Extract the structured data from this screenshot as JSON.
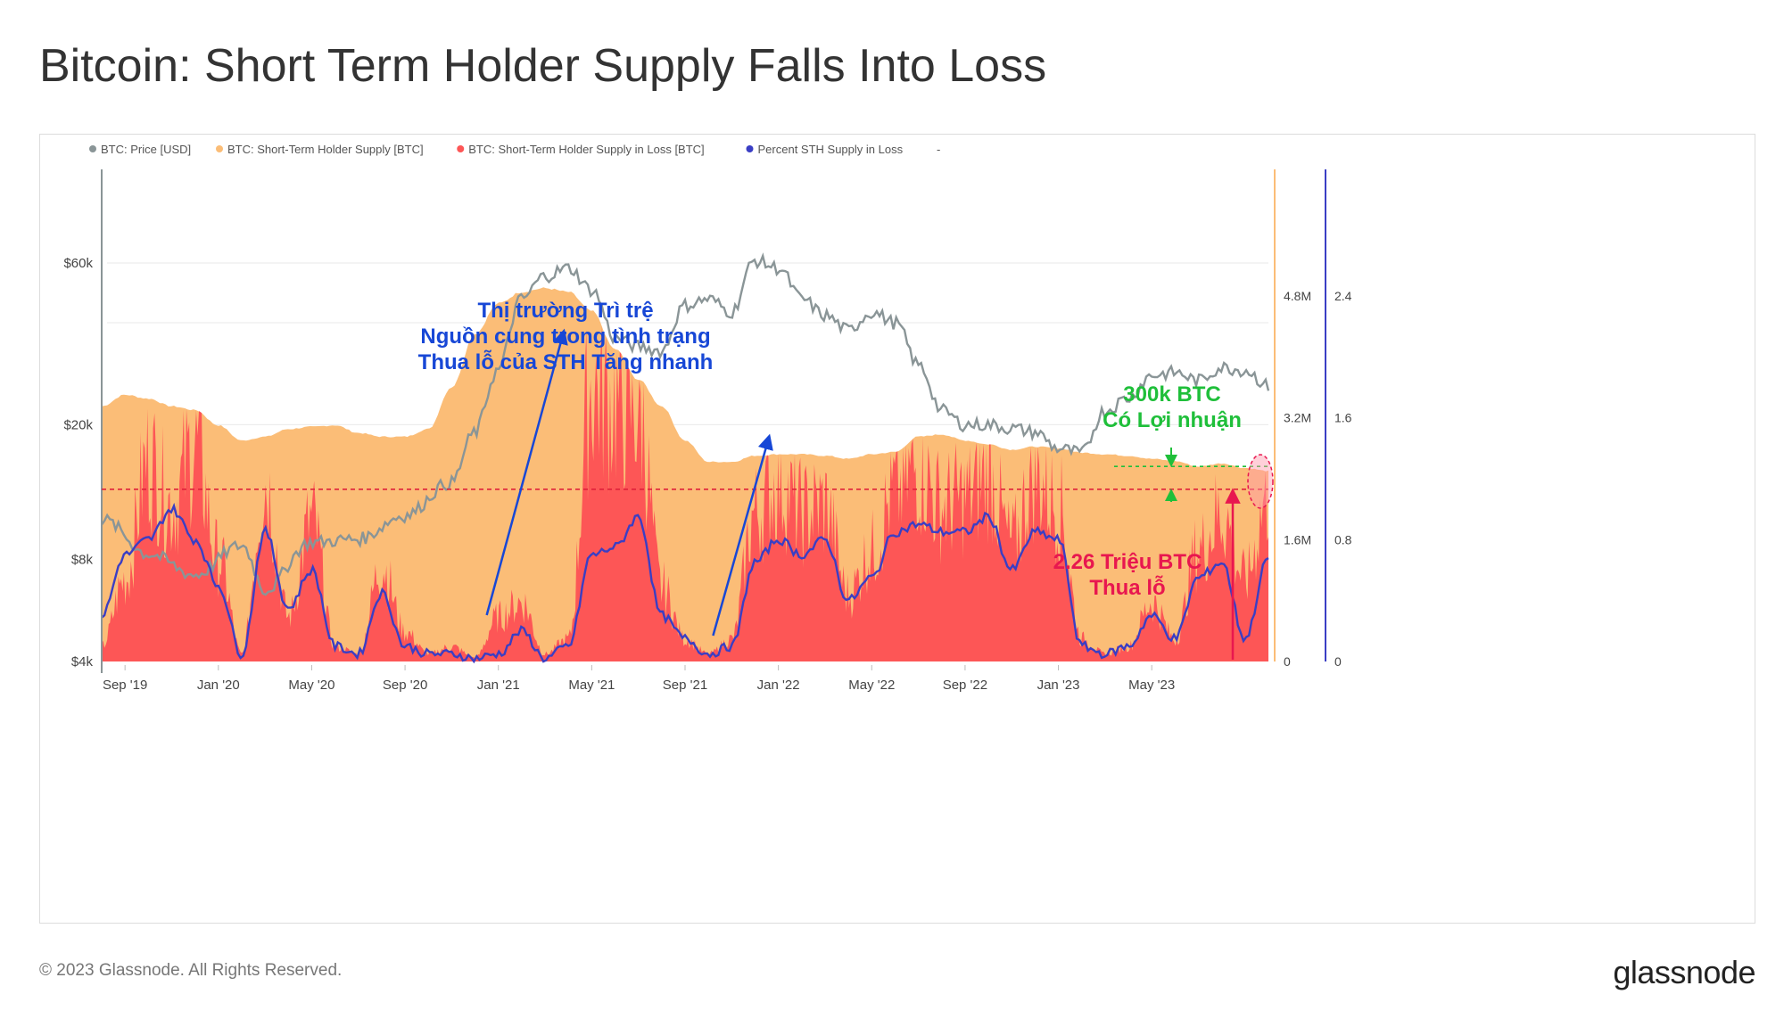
{
  "title": "Bitcoin: Short Term Holder Supply Falls Into Loss",
  "footer": {
    "copyright": "© 2023 Glassnode. All Rights Reserved.",
    "logo": "glassnode",
    "watermark": "glassnode"
  },
  "colors": {
    "price": "#8a9597",
    "sth_supply": "#fbbd77",
    "sth_loss": "#fd5656",
    "percent_loss": "#3a3ec4",
    "annotation_blue": "#1747d6",
    "annotation_green": "#1fbf3a",
    "annotation_red": "#e8174f"
  },
  "chart_data": {
    "type": "area",
    "legend": [
      {
        "label": "BTC: Price [USD]",
        "color": "#8a9597"
      },
      {
        "label": "BTC: Short-Term Holder Supply [BTC]",
        "color": "#fbbd77"
      },
      {
        "label": "BTC: Short-Term Holder Supply in Loss [BTC]",
        "color": "#fd5656"
      },
      {
        "label": "Percent STH Supply in Loss",
        "color": "#3a3ec4"
      },
      {
        "label": "-",
        "color": ""
      }
    ],
    "x_ticks": [
      "Sep '19",
      "Jan '20",
      "May '20",
      "Sep '20",
      "Jan '21",
      "May '21",
      "Sep '21",
      "Jan '22",
      "May '22",
      "Sep '22",
      "Jan '23",
      "May '23"
    ],
    "x_range_months": [
      0,
      50
    ],
    "y_left": {
      "scale": "log",
      "ticks": [
        "$4k",
        "$8k",
        "$20k",
        "$60k"
      ],
      "tick_values": [
        4000,
        8000,
        20000,
        60000
      ],
      "range": [
        4000,
        110000
      ]
    },
    "y_right1": {
      "ticks": [
        "0",
        "1.6M",
        "3.2M",
        "4.8M"
      ],
      "tick_values": [
        0,
        1600000,
        3200000,
        4800000
      ],
      "range": [
        0,
        6400000
      ]
    },
    "y_right2": {
      "ticks": [
        "0",
        "0.8",
        "1.6",
        "2.4"
      ],
      "tick_values": [
        0,
        0.8,
        1.6,
        2.4
      ],
      "range": [
        0,
        3.2
      ]
    },
    "series": [
      {
        "name": "BTC: Price [USD]",
        "axis": "left",
        "points": [
          [
            0,
            10500
          ],
          [
            2,
            8300
          ],
          [
            4,
            7200
          ],
          [
            6,
            8800
          ],
          [
            7,
            6500
          ],
          [
            9,
            9000
          ],
          [
            11,
            9200
          ],
          [
            13,
            10800
          ],
          [
            15,
            13500
          ],
          [
            16,
            19000
          ],
          [
            17,
            29000
          ],
          [
            18,
            47000
          ],
          [
            19,
            55000
          ],
          [
            20,
            58000
          ],
          [
            21,
            50000
          ],
          [
            22,
            36000
          ],
          [
            23,
            34000
          ],
          [
            24,
            33000
          ],
          [
            25,
            45000
          ],
          [
            26,
            47000
          ],
          [
            27,
            43000
          ],
          [
            28,
            61000
          ],
          [
            29,
            58000
          ],
          [
            30,
            47000
          ],
          [
            31,
            42000
          ],
          [
            32,
            38000
          ],
          [
            33,
            43000
          ],
          [
            34,
            40000
          ],
          [
            35,
            30000
          ],
          [
            36,
            22000
          ],
          [
            37,
            20000
          ],
          [
            38,
            20000
          ],
          [
            39,
            19500
          ],
          [
            40,
            19000
          ],
          [
            41,
            17000
          ],
          [
            42,
            16500
          ],
          [
            43,
            22000
          ],
          [
            44,
            24000
          ],
          [
            45,
            28000
          ],
          [
            46,
            28500
          ],
          [
            47,
            27000
          ],
          [
            48,
            29500
          ],
          [
            49,
            29000
          ],
          [
            50,
            26000
          ]
        ]
      },
      {
        "name": "BTC: Short-Term Holder Supply [BTC]",
        "axis": "right1",
        "points": [
          [
            0,
            3350000
          ],
          [
            1,
            3500000
          ],
          [
            2,
            3450000
          ],
          [
            3,
            3350000
          ],
          [
            4,
            3300000
          ],
          [
            5,
            3100000
          ],
          [
            6,
            2900000
          ],
          [
            7,
            2950000
          ],
          [
            8,
            3050000
          ],
          [
            9,
            3080000
          ],
          [
            10,
            3100000
          ],
          [
            11,
            3000000
          ],
          [
            12,
            2950000
          ],
          [
            13,
            2950000
          ],
          [
            14,
            3050000
          ],
          [
            15,
            3600000
          ],
          [
            16,
            4300000
          ],
          [
            17,
            4700000
          ],
          [
            18,
            4850000
          ],
          [
            19,
            4900000
          ],
          [
            20,
            4850000
          ],
          [
            21,
            4600000
          ],
          [
            22,
            4100000
          ],
          [
            23,
            3700000
          ],
          [
            24,
            3350000
          ],
          [
            25,
            2900000
          ],
          [
            26,
            2620000
          ],
          [
            27,
            2620000
          ],
          [
            28,
            2700000
          ],
          [
            29,
            2720000
          ],
          [
            30,
            2720000
          ],
          [
            31,
            2700000
          ],
          [
            32,
            2660000
          ],
          [
            33,
            2720000
          ],
          [
            34,
            2750000
          ],
          [
            35,
            2950000
          ],
          [
            36,
            2980000
          ],
          [
            37,
            2900000
          ],
          [
            38,
            2850000
          ],
          [
            39,
            2780000
          ],
          [
            40,
            2820000
          ],
          [
            41,
            2800000
          ],
          [
            42,
            2740000
          ],
          [
            43,
            2720000
          ],
          [
            44,
            2700000
          ],
          [
            45,
            2660000
          ],
          [
            46,
            2630000
          ],
          [
            47,
            2560000
          ],
          [
            48,
            2600000
          ],
          [
            49,
            2540000
          ],
          [
            50,
            2500000
          ]
        ]
      },
      {
        "name": "BTC: Short-Term Holder Supply in Loss [BTC]",
        "axis": "right1",
        "points": [
          [
            0,
            200000
          ],
          [
            1,
            1100000
          ],
          [
            2,
            2700000
          ],
          [
            3,
            2100000
          ],
          [
            4,
            2900000
          ],
          [
            5,
            1400000
          ],
          [
            6,
            100000
          ],
          [
            7,
            2400000
          ],
          [
            8,
            600000
          ],
          [
            9,
            1900000
          ],
          [
            10,
            200000
          ],
          [
            11,
            100000
          ],
          [
            12,
            1300000
          ],
          [
            13,
            400000
          ],
          [
            14,
            100000
          ],
          [
            15,
            200000
          ],
          [
            16,
            50000
          ],
          [
            17,
            600000
          ],
          [
            18,
            800000
          ],
          [
            19,
            100000
          ],
          [
            20,
            300000
          ],
          [
            21,
            3700000
          ],
          [
            22,
            3500000
          ],
          [
            23,
            3400000
          ],
          [
            24,
            1000000
          ],
          [
            25,
            300000
          ],
          [
            26,
            100000
          ],
          [
            27,
            300000
          ],
          [
            28,
            2000000
          ],
          [
            29,
            2400000
          ],
          [
            30,
            2000000
          ],
          [
            31,
            2100000
          ],
          [
            32,
            900000
          ],
          [
            33,
            1500000
          ],
          [
            34,
            2300000
          ],
          [
            35,
            2600000
          ],
          [
            36,
            2100000
          ],
          [
            37,
            2200000
          ],
          [
            38,
            2500000
          ],
          [
            39,
            1600000
          ],
          [
            40,
            2500000
          ],
          [
            41,
            2100000
          ],
          [
            42,
            300000
          ],
          [
            43,
            100000
          ],
          [
            44,
            200000
          ],
          [
            45,
            800000
          ],
          [
            46,
            300000
          ],
          [
            47,
            1500000
          ],
          [
            48,
            2000000
          ],
          [
            49,
            1100000
          ],
          [
            50,
            2260000
          ]
        ]
      },
      {
        "name": "Percent STH Supply in Loss",
        "axis": "right2",
        "points": [
          [
            0,
            0.3
          ],
          [
            1,
            0.7
          ],
          [
            2,
            0.8
          ],
          [
            3,
            1.0
          ],
          [
            4,
            0.8
          ],
          [
            5,
            0.5
          ],
          [
            6,
            0.05
          ],
          [
            7,
            0.85
          ],
          [
            8,
            0.35
          ],
          [
            9,
            0.6
          ],
          [
            10,
            0.1
          ],
          [
            11,
            0.05
          ],
          [
            12,
            0.45
          ],
          [
            13,
            0.1
          ],
          [
            14,
            0.05
          ],
          [
            15,
            0.05
          ],
          [
            16,
            0.02
          ],
          [
            17,
            0.05
          ],
          [
            18,
            0.2
          ],
          [
            19,
            0.02
          ],
          [
            20,
            0.1
          ],
          [
            21,
            0.7
          ],
          [
            22,
            0.75
          ],
          [
            23,
            0.95
          ],
          [
            24,
            0.3
          ],
          [
            25,
            0.15
          ],
          [
            26,
            0.05
          ],
          [
            27,
            0.1
          ],
          [
            28,
            0.65
          ],
          [
            29,
            0.8
          ],
          [
            30,
            0.7
          ],
          [
            31,
            0.8
          ],
          [
            32,
            0.4
          ],
          [
            33,
            0.55
          ],
          [
            34,
            0.85
          ],
          [
            35,
            0.9
          ],
          [
            36,
            0.85
          ],
          [
            37,
            0.85
          ],
          [
            38,
            0.95
          ],
          [
            39,
            0.6
          ],
          [
            40,
            0.85
          ],
          [
            41,
            0.8
          ],
          [
            42,
            0.1
          ],
          [
            43,
            0.05
          ],
          [
            44,
            0.1
          ],
          [
            45,
            0.3
          ],
          [
            46,
            0.15
          ],
          [
            47,
            0.55
          ],
          [
            48,
            0.65
          ],
          [
            49,
            0.15
          ],
          [
            50,
            0.68
          ]
        ]
      }
    ],
    "reference_line": {
      "value": 2260000,
      "axis": "right1",
      "style": "dashed red"
    },
    "annotations": [
      {
        "lines": [
          "Thị trường Trì trệ",
          "Nguồn cung trong tình trạng",
          "Thua lỗ của STH Tăng nhanh"
        ],
        "color": "blue"
      },
      {
        "lines": [
          "300k BTC",
          "Có Lợi nhuận"
        ],
        "color": "green"
      },
      {
        "lines": [
          "2.26 Triệu BTC",
          "Thua lỗ"
        ],
        "color": "red"
      }
    ]
  }
}
